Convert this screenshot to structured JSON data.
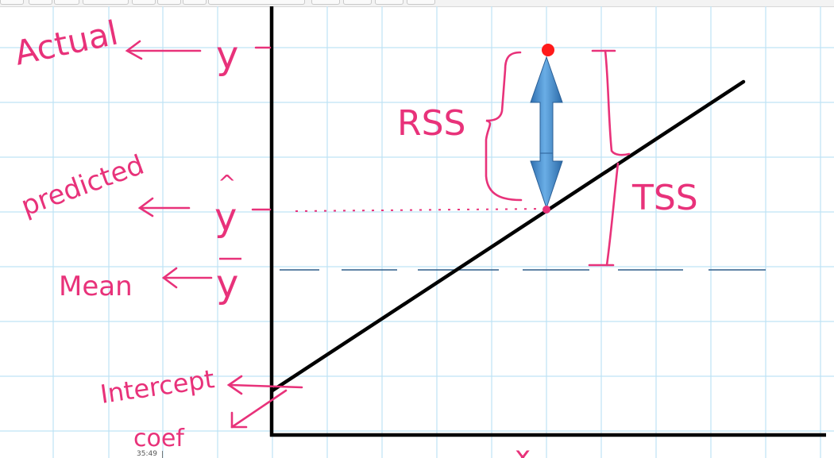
{
  "labels": {
    "actual": "Actual",
    "y": "y",
    "predicted": "predicted",
    "y_hat": "y",
    "hat": "^",
    "mean": "Mean",
    "y_bar": "y",
    "rss": "RSS",
    "tss": "TSS",
    "intercept": "Intercept",
    "coef": "coef",
    "x_axis": "x"
  },
  "timestamp": "35:49",
  "colors": {
    "ink_pink": "#e8327a",
    "axis": "#000000",
    "grid": "#bfe3f5",
    "mean_line": "#2e5f8a",
    "arrow_blue": "#3d86c6",
    "actual_point": "#ff1a1a"
  },
  "toolbar": {
    "button_count": 12
  }
}
